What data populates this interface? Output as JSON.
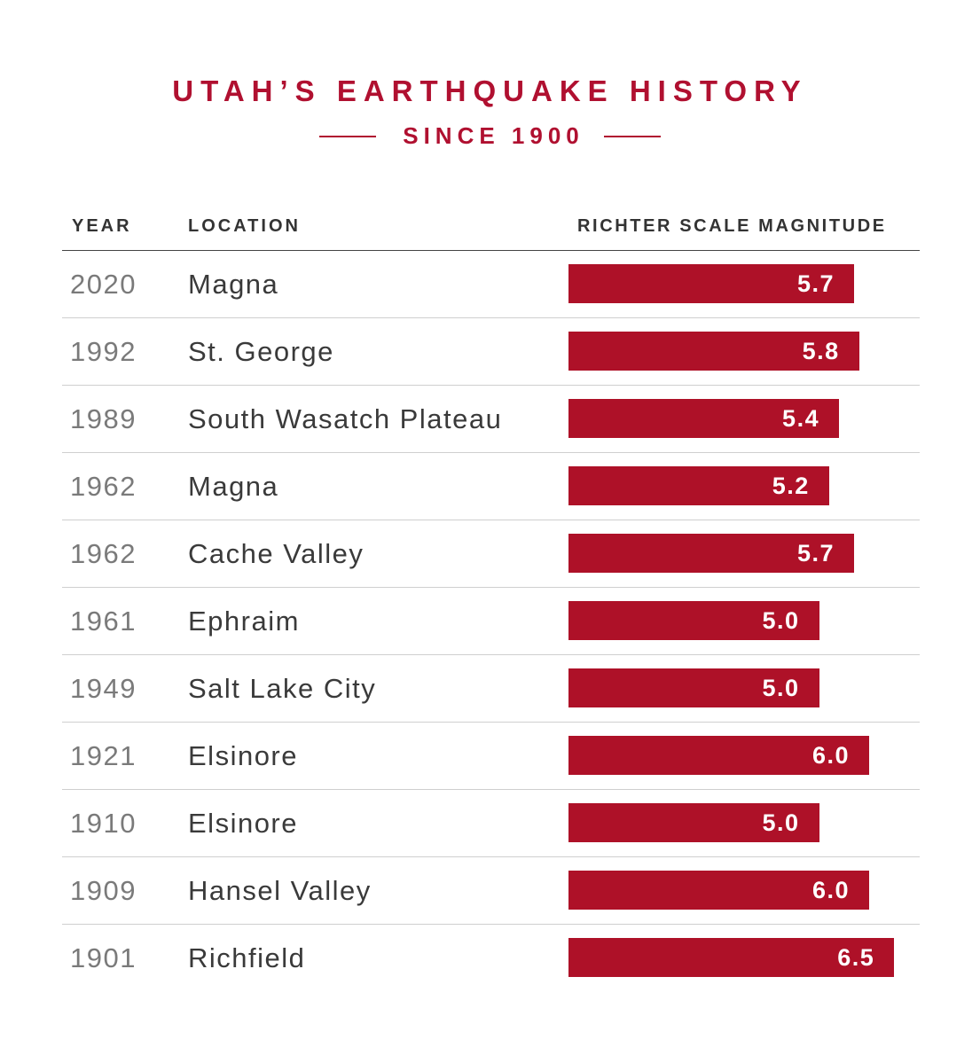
{
  "title": "UTAH’S EARTHQUAKE HISTORY",
  "subtitle": "SINCE 1900",
  "colors": {
    "accent": "#b01030",
    "bar": "#ae1128",
    "year_text": "#7a7a7a",
    "location_text": "#3a3a3a"
  },
  "headers": {
    "year": "YEAR",
    "location": "LOCATION",
    "magnitude": "RICHTER SCALE MAGNITUDE"
  },
  "chart_data": {
    "type": "bar",
    "title": "UTAH’S EARTHQUAKE HISTORY",
    "subtitle": "SINCE 1900",
    "orientation": "horizontal",
    "xlabel": "RICHTER SCALE MAGNITUDE",
    "rows": [
      {
        "year": "2020",
        "location": "Magna",
        "magnitude": 5.7,
        "label": "5.7"
      },
      {
        "year": "1992",
        "location": "St. George",
        "magnitude": 5.8,
        "label": "5.8"
      },
      {
        "year": "1989",
        "location": "South Wasatch Plateau",
        "magnitude": 5.4,
        "label": "5.4"
      },
      {
        "year": "1962",
        "location": "Magna",
        "magnitude": 5.2,
        "label": "5.2"
      },
      {
        "year": "1962",
        "location": "Cache Valley",
        "magnitude": 5.7,
        "label": "5.7"
      },
      {
        "year": "1961",
        "location": "Ephraim",
        "magnitude": 5.0,
        "label": "5.0"
      },
      {
        "year": "1949",
        "location": "Salt Lake City",
        "magnitude": 5.0,
        "label": "5.0"
      },
      {
        "year": "1921",
        "location": "Elsinore",
        "magnitude": 6.0,
        "label": "6.0"
      },
      {
        "year": "1910",
        "location": "Elsinore",
        "magnitude": 5.0,
        "label": "5.0"
      },
      {
        "year": "1909",
        "location": "Hansel Valley",
        "magnitude": 6.0,
        "label": "6.0"
      },
      {
        "year": "1901",
        "location": "Richfield",
        "magnitude": 6.5,
        "label": "6.5"
      }
    ]
  }
}
